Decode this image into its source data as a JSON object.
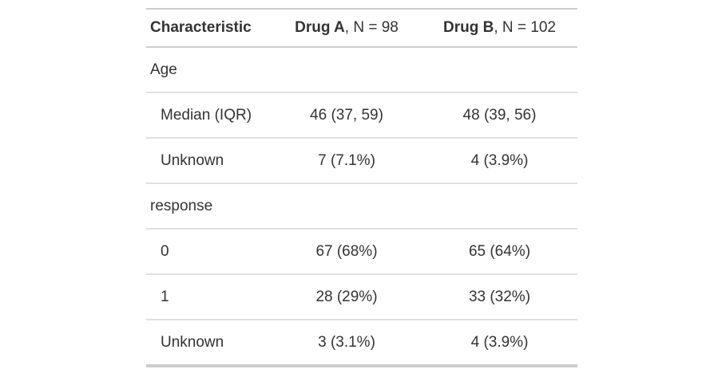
{
  "header": {
    "cols": [
      {
        "bold": "Characteristic",
        "rest": ""
      },
      {
        "bold": "Drug A",
        "rest": ", N = 98"
      },
      {
        "bold": "Drug B",
        "rest": ", N = 102"
      }
    ]
  },
  "rows": [
    {
      "type": "group",
      "label": "Age",
      "a": "",
      "b": ""
    },
    {
      "type": "data",
      "label": "Median (IQR)",
      "a": "46 (37, 59)",
      "b": "48 (39, 56)"
    },
    {
      "type": "data",
      "label": "Unknown",
      "a": "7 (7.1%)",
      "b": "4 (3.9%)"
    },
    {
      "type": "group",
      "label": "response",
      "a": "",
      "b": ""
    },
    {
      "type": "data",
      "label": "0",
      "a": "67 (68%)",
      "b": "65 (64%)"
    },
    {
      "type": "data",
      "label": "1",
      "a": "28 (29%)",
      "b": "33 (32%)"
    },
    {
      "type": "data",
      "label": "Unknown",
      "a": "3 (3.1%)",
      "b": "4 (3.9%)"
    }
  ],
  "colors": {
    "text": "#333333",
    "outer_border": "#CDCDCD",
    "row_border": "#E0E0E0",
    "background": "#FFFFFF"
  },
  "chart_data": {
    "type": "table",
    "title": "",
    "columns": [
      "Characteristic",
      "Drug A, N = 98",
      "Drug B, N = 102"
    ],
    "rows": [
      [
        "Age",
        "",
        ""
      ],
      [
        "Median (IQR)",
        "46 (37, 59)",
        "48 (39, 56)"
      ],
      [
        "Unknown",
        "7 (7.1%)",
        "4 (3.9%)"
      ],
      [
        "response",
        "",
        ""
      ],
      [
        "0",
        "67 (68%)",
        "65 (64%)"
      ],
      [
        "1",
        "28 (29%)",
        "33 (32%)"
      ],
      [
        "Unknown",
        "3 (3.1%)",
        "4 (3.9%)"
      ]
    ]
  }
}
